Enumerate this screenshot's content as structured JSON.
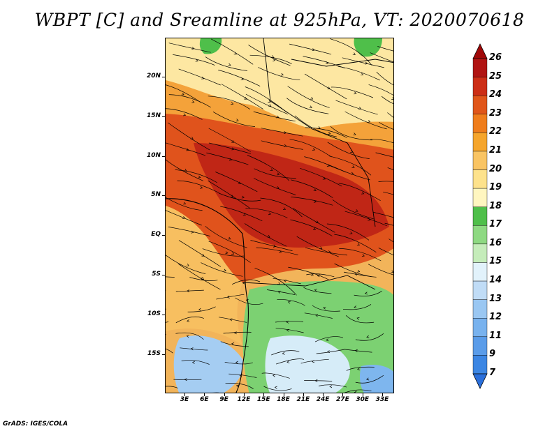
{
  "title": "WBPT [C] and Sreamline at 925hPa, VT: 2020070618",
  "credit": "GrADS: IGES/COLA",
  "map": {
    "lat_labels": [
      "20N",
      "15N",
      "10N",
      "5N",
      "EQ",
      "5S",
      "10S",
      "15S"
    ],
    "lon_labels": [
      "3E",
      "6E",
      "9E",
      "12E",
      "15E",
      "18E",
      "21E",
      "24E",
      "27E",
      "30E",
      "33E"
    ]
  },
  "colorbar": {
    "levels": [
      "7",
      "9",
      "11",
      "12",
      "13",
      "14",
      "15",
      "16",
      "17",
      "18",
      "19",
      "20",
      "21",
      "22",
      "23",
      "24",
      "25",
      "26"
    ],
    "colors": [
      "#2a6fdb",
      "#3c86e3",
      "#5a9ce9",
      "#78b2ee",
      "#9ac7f2",
      "#c0dcf6",
      "#e2f2fb",
      "#c5ecba",
      "#8ed982",
      "#4fbf4a",
      "#fff6c0",
      "#fde28c",
      "#f9c463",
      "#f5a52c",
      "#ef7d1c",
      "#e0561a",
      "#cc2e16",
      "#b01412",
      "#a00808"
    ]
  }
}
